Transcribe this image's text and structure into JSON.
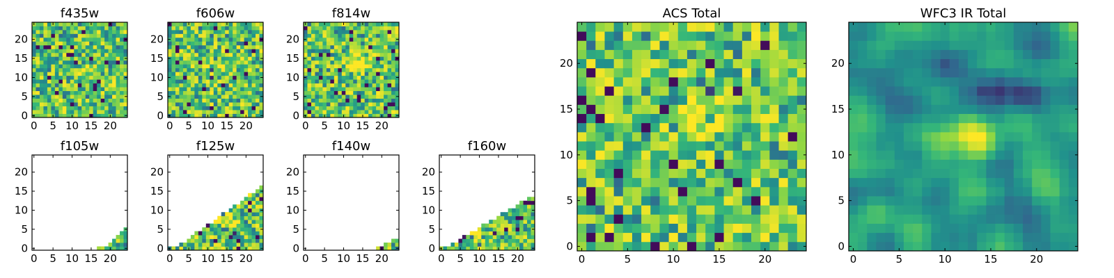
{
  "figure": {
    "colormap": [
      "#440154",
      "#31688e",
      "#21918c",
      "#35b779",
      "#90d743",
      "#fde725"
    ],
    "axis_color": "#000000",
    "background": "#ffffff"
  },
  "chart_data": [
    {
      "id": "f435w",
      "type": "heatmap",
      "title": "f435w",
      "grid": false,
      "xlim": [
        0,
        24
      ],
      "ylim": [
        0,
        24
      ],
      "xticks": [
        0,
        5,
        10,
        15,
        20
      ],
      "yticks": [
        0,
        5,
        10,
        15,
        20
      ],
      "pattern": "noise",
      "coverage": "full",
      "source_peak": [
        13,
        11
      ],
      "source_strength": 0.15,
      "seed": 11
    },
    {
      "id": "f606w",
      "type": "heatmap",
      "title": "f606w",
      "grid": false,
      "xlim": [
        0,
        24
      ],
      "ylim": [
        0,
        24
      ],
      "xticks": [
        0,
        5,
        10,
        15,
        20
      ],
      "yticks": [
        0,
        5,
        10,
        15,
        20
      ],
      "pattern": "noise",
      "coverage": "full",
      "source_peak": [
        13,
        12
      ],
      "source_strength": 0.2,
      "seed": 23
    },
    {
      "id": "f814w",
      "type": "heatmap",
      "title": "f814w",
      "grid": false,
      "xlim": [
        0,
        24
      ],
      "ylim": [
        0,
        24
      ],
      "xticks": [
        0,
        5,
        10,
        15,
        20
      ],
      "yticks": [
        0,
        5,
        10,
        15,
        20
      ],
      "pattern": "noise",
      "coverage": "full",
      "source_peak": [
        14,
        14
      ],
      "source_strength": 0.55,
      "seed": 37
    },
    {
      "id": "f105w",
      "type": "heatmap",
      "title": "f105w",
      "grid": false,
      "xlim": [
        0,
        24
      ],
      "ylim": [
        0,
        24
      ],
      "xticks": [
        0,
        5,
        10,
        15,
        20
      ],
      "yticks": [
        0,
        5,
        10,
        15,
        20
      ],
      "pattern": "noise",
      "coverage": "corner",
      "source_peak": [
        13,
        13
      ],
      "source_strength": 0.3,
      "seed": 41
    },
    {
      "id": "f125w",
      "type": "heatmap",
      "title": "f125w",
      "grid": false,
      "xlim": [
        0,
        24
      ],
      "ylim": [
        0,
        24
      ],
      "xticks": [
        0,
        5,
        10,
        15,
        20
      ],
      "yticks": [
        0,
        5,
        10,
        15,
        20
      ],
      "pattern": "noise",
      "coverage": "wedge-steep",
      "source_peak": [
        15,
        7
      ],
      "source_strength": 0.45,
      "seed": 53
    },
    {
      "id": "f140w",
      "type": "heatmap",
      "title": "f140w",
      "grid": false,
      "xlim": [
        0,
        24
      ],
      "ylim": [
        0,
        24
      ],
      "xticks": [
        0,
        5,
        10,
        15,
        20
      ],
      "yticks": [
        0,
        5,
        10,
        15,
        20
      ],
      "pattern": "noise",
      "coverage": "corner-small",
      "source_peak": [
        13,
        13
      ],
      "source_strength": 0.3,
      "seed": 61
    },
    {
      "id": "f160w",
      "type": "heatmap",
      "title": "f160w",
      "grid": false,
      "xlim": [
        0,
        24
      ],
      "ylim": [
        0,
        24
      ],
      "xticks": [
        0,
        5,
        10,
        15,
        20
      ],
      "yticks": [
        0,
        5,
        10,
        15,
        20
      ],
      "pattern": "noise",
      "coverage": "wedge-shallow",
      "source_peak": [
        10,
        3
      ],
      "source_strength": 0.35,
      "seed": 71
    },
    {
      "id": "acs-total",
      "type": "heatmap",
      "title": "ACS Total",
      "grid": false,
      "xlim": [
        0,
        24
      ],
      "ylim": [
        0,
        24
      ],
      "xticks": [
        0,
        5,
        10,
        15,
        20
      ],
      "yticks": [
        0,
        5,
        10,
        15,
        20
      ],
      "pattern": "noise",
      "coverage": "full",
      "source_peak": [
        14,
        14
      ],
      "source_strength": 0.45,
      "seed": 83
    },
    {
      "id": "wfc3-ir-total",
      "type": "heatmap",
      "title": "WFC3 IR Total",
      "grid": false,
      "xlim": [
        0,
        24
      ],
      "ylim": [
        0,
        24
      ],
      "xticks": [
        0,
        5,
        10,
        15,
        20
      ],
      "yticks": [
        0,
        5,
        10,
        15,
        20
      ],
      "pattern": "smooth",
      "coverage": "full",
      "source_peak": [
        13,
        12
      ],
      "source_strength": 0.6,
      "seed": 97
    }
  ]
}
